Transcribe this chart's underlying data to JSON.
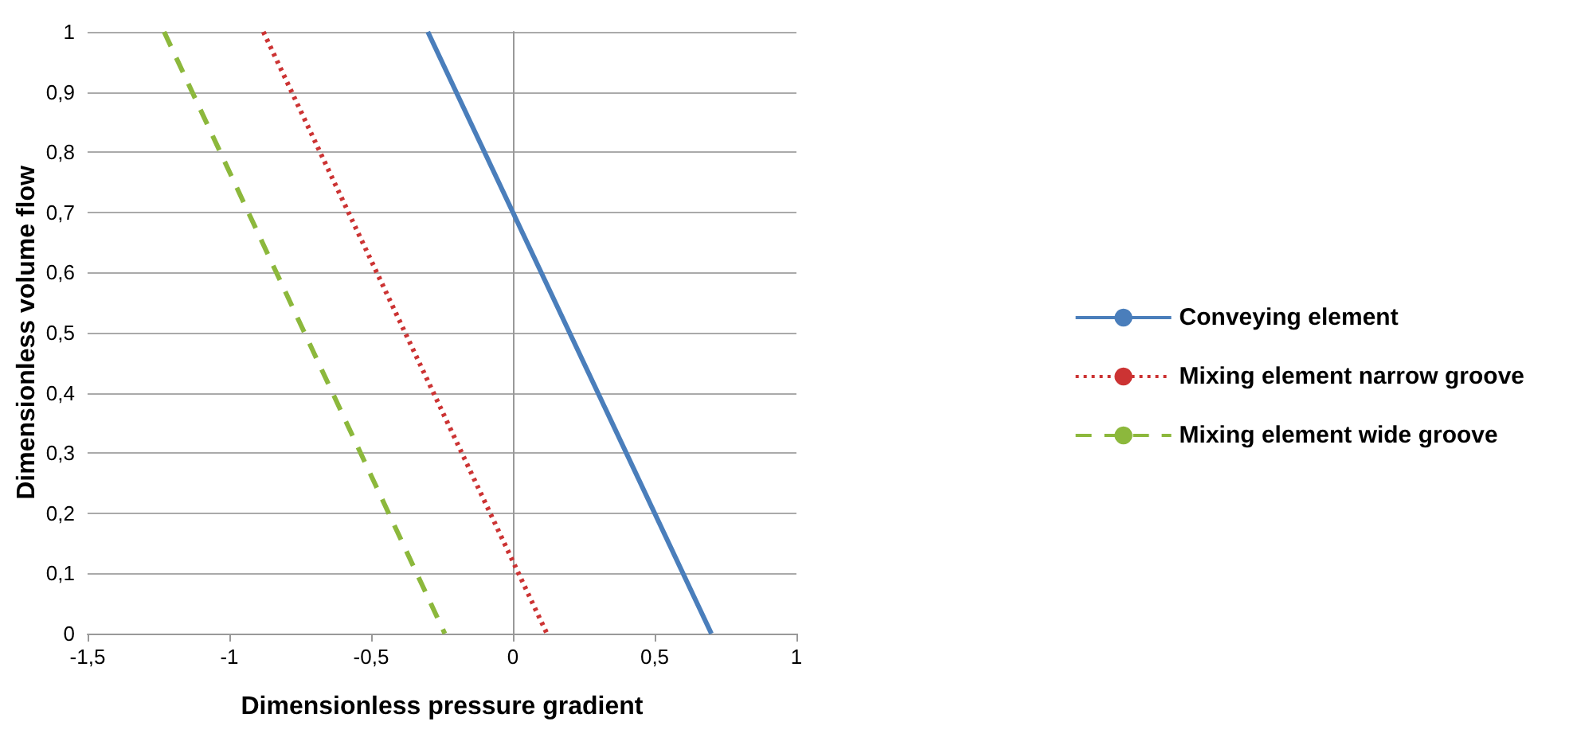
{
  "chart_data": {
    "type": "line",
    "xlabel": "Dimensionless pressure gradient",
    "ylabel": "Dimensionless volume flow",
    "series": [
      {
        "name": "Conveying element",
        "color": "#4a7ebb",
        "x": [
          -0.3,
          0.7
        ],
        "values": [
          1,
          0
        ],
        "line_style": "solid"
      },
      {
        "name": "Mixing element narrow groove",
        "color": "#cc3333",
        "x": [
          -0.88,
          0.12
        ],
        "values": [
          1,
          0
        ],
        "line_style": "dotted"
      },
      {
        "name": "Mixing element wide groove",
        "color": "#8cb83c",
        "x": [
          -1.23,
          -0.24
        ],
        "values": [
          1,
          0
        ],
        "line_style": "dashed"
      }
    ],
    "xlim": [
      -1.5,
      1
    ],
    "ylim": [
      0,
      1
    ],
    "xticks": [
      {
        "value": -1.5,
        "label": "-1,5"
      },
      -1,
      {
        "value": -0.5,
        "label": "-0,5"
      },
      0,
      {
        "value": 0.5,
        "label": "0,5"
      },
      1
    ],
    "yticks": [
      0,
      {
        "value": 0.1,
        "label": "0,1"
      },
      {
        "value": 0.2,
        "label": "0,2"
      },
      {
        "value": 0.3,
        "label": "0,3"
      },
      {
        "value": 0.4,
        "label": "0,4"
      },
      {
        "value": 0.5,
        "label": "0,5"
      },
      {
        "value": 0.6,
        "label": "0,6"
      },
      {
        "value": 0.7,
        "label": "0,7"
      },
      {
        "value": 0.8,
        "label": "0,8"
      },
      {
        "value": 0.9,
        "label": "0,9"
      },
      1
    ],
    "grid": "y",
    "legend": "right",
    "marker": "none"
  }
}
